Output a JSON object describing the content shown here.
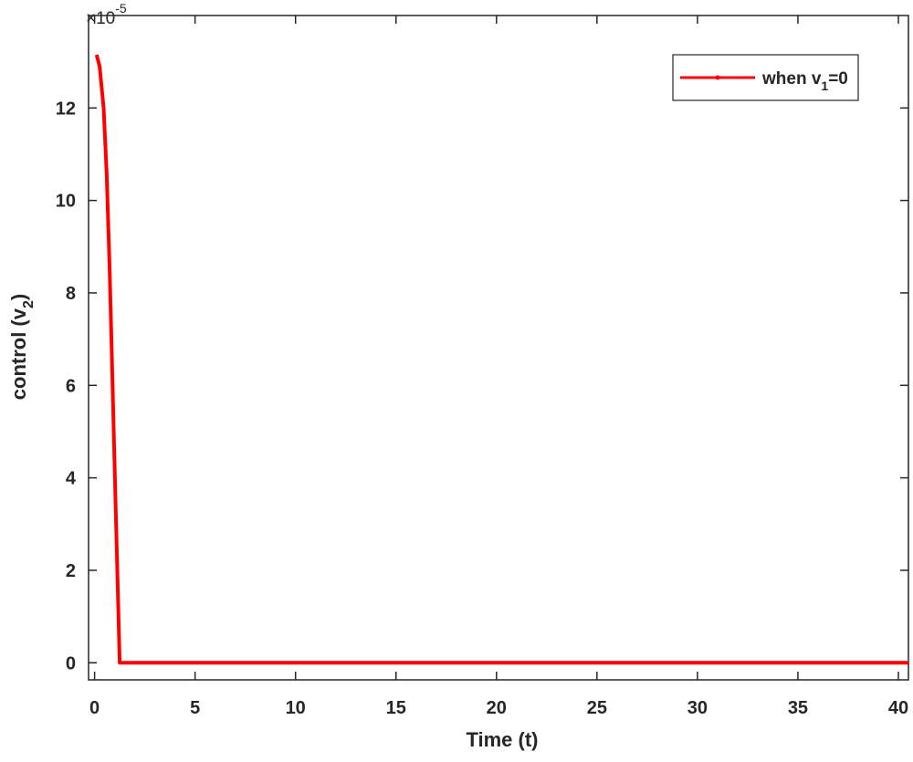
{
  "chart_data": {
    "type": "line",
    "xlabel": "Time (t)",
    "ylabel": "control (v",
    "ylabel_sub": "2",
    "ylabel_end": ")",
    "y_multiplier": "×10",
    "y_exponent": "-5",
    "x": [
      0.1,
      0.25,
      0.45,
      0.6,
      0.75,
      1.0,
      1.25,
      40.5
    ],
    "series": [
      {
        "name": "when v",
        "name_sub": "1",
        "name_end": "=0",
        "color": "#ff0000",
        "values": [
          13.15,
          12.9,
          12.0,
          10.6,
          8.5,
          4.2,
          0,
          0
        ]
      }
    ],
    "xlim": [
      -0.3,
      40.5
    ],
    "ylim": [
      -0.37,
      14
    ],
    "xticks": [
      0,
      5,
      10,
      15,
      20,
      25,
      30,
      35,
      40
    ],
    "yticks": [
      0,
      2,
      4,
      6,
      8,
      10,
      12
    ],
    "legend": "upper right"
  }
}
